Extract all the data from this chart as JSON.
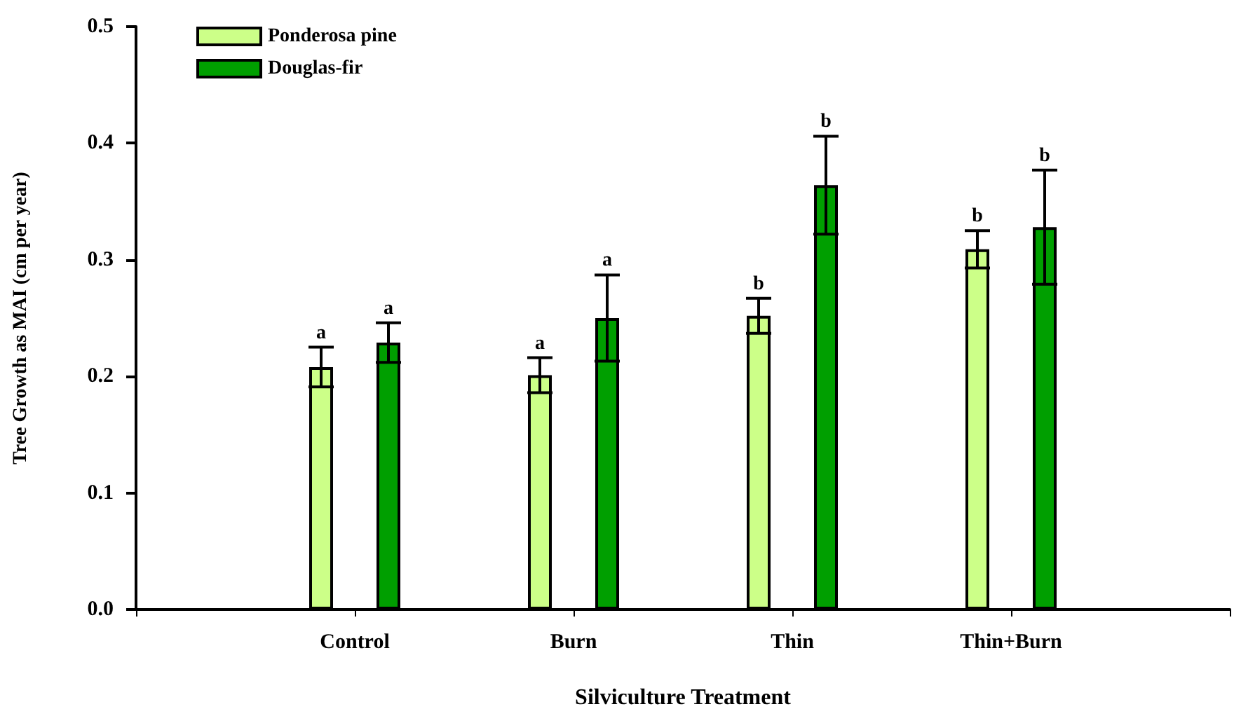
{
  "chart_data": {
    "type": "bar",
    "xlabel": "Silviculture Treatment",
    "ylabel": "Tree Growth as MAI (cm per year)",
    "categories": [
      null,
      "Control",
      "Burn",
      "Thin",
      "Thin+Burn",
      null
    ],
    "series": [
      {
        "name": "Ponderosa pine",
        "color": "#ccff88",
        "values": [
          null,
          0.208,
          0.201,
          0.252,
          0.309,
          null
        ],
        "errors": [
          null,
          0.017,
          0.015,
          0.015,
          0.016,
          null
        ],
        "value_labels": [
          null,
          "a",
          "a",
          "b",
          "b",
          null
        ]
      },
      {
        "name": "Douglas-fir",
        "color": "#009f00",
        "values": [
          null,
          0.229,
          0.25,
          0.364,
          0.328,
          null
        ],
        "errors": [
          null,
          0.017,
          0.037,
          0.042,
          0.049,
          null
        ],
        "value_labels": [
          null,
          "a",
          "a",
          "b",
          "b",
          null
        ]
      }
    ],
    "ylim": [
      0,
      0.5
    ],
    "yticks": [
      {
        "value": 0,
        "label": "0.0"
      },
      {
        "value": 0.1,
        "label": "0.1"
      },
      {
        "value": 0.2,
        "label": "0.2"
      },
      {
        "value": 0.3,
        "label": "0.3"
      },
      {
        "value": 0.4,
        "label": "0.4"
      },
      {
        "value": 0.5,
        "label": "0.5"
      }
    ],
    "grid": false,
    "legend": "top left"
  }
}
